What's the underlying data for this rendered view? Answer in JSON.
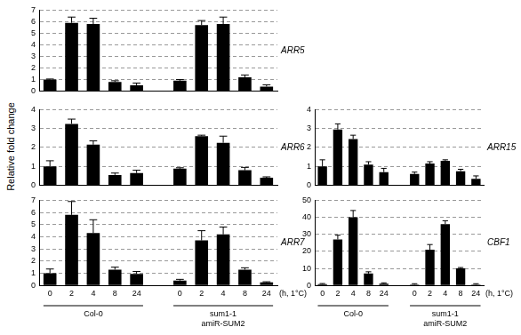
{
  "chart_data": [
    {
      "type": "bar",
      "title": "ARR5",
      "categories": [
        "0",
        "2",
        "4",
        "8",
        "24",
        null,
        "0",
        "2",
        "4",
        "8",
        "24"
      ],
      "values": [
        1.0,
        5.9,
        5.8,
        0.8,
        0.5,
        null,
        0.9,
        5.7,
        5.8,
        1.2,
        0.4
      ],
      "errors": [
        0.05,
        0.5,
        0.5,
        0.1,
        0.2,
        null,
        0.1,
        0.4,
        0.6,
        0.2,
        0.15
      ],
      "color": "#000000",
      "ylim": [
        0,
        7
      ],
      "yticks": [
        0,
        1,
        2,
        3,
        4,
        5,
        6,
        7
      ],
      "grid": true,
      "tick_labels": "y"
    },
    {
      "type": "bar",
      "title": "ARR6",
      "ylabel": "Relative fold change",
      "categories": [
        "0",
        "2",
        "4",
        "8",
        "24",
        null,
        "0",
        "2",
        "4",
        "8",
        "24"
      ],
      "values": [
        1.0,
        3.25,
        2.15,
        0.55,
        0.65,
        null,
        0.88,
        2.6,
        2.25,
        0.8,
        0.4
      ],
      "errors": [
        0.3,
        0.25,
        0.2,
        0.1,
        0.15,
        null,
        0.05,
        0.05,
        0.35,
        0.15,
        0.05
      ],
      "color": "#000000",
      "ylim": [
        0,
        4
      ],
      "yticks": [
        0,
        1,
        2,
        3,
        4
      ],
      "grid": true,
      "tick_labels": "y"
    },
    {
      "type": "bar",
      "title": "ARR7",
      "xlabel": "(h, 1°C)",
      "group_labels": [
        [
          "Col-0"
        ],
        [
          "sum1-1",
          "amiR-SUM2"
        ]
      ],
      "categories": [
        "0",
        "2",
        "4",
        "8",
        "24",
        null,
        "0",
        "2",
        "4",
        "8",
        "24"
      ],
      "values": [
        1.0,
        5.8,
        4.3,
        1.3,
        0.95,
        null,
        0.4,
        3.7,
        4.2,
        1.3,
        0.25
      ],
      "errors": [
        0.35,
        1.1,
        1.1,
        0.2,
        0.2,
        null,
        0.1,
        0.8,
        0.6,
        0.15,
        0.05
      ],
      "color": "#000000",
      "ylim": [
        0,
        7
      ],
      "yticks": [
        0,
        1,
        2,
        3,
        4,
        5,
        6,
        7
      ],
      "grid": true
    },
    {
      "type": "bar",
      "title": "ARR15",
      "categories": [
        "0",
        "2",
        "4",
        "8",
        "24",
        null,
        "0",
        "2",
        "4",
        "8",
        "24"
      ],
      "values": [
        1.0,
        2.95,
        2.45,
        1.1,
        0.7,
        null,
        0.6,
        1.15,
        1.3,
        0.75,
        0.35
      ],
      "errors": [
        0.35,
        0.3,
        0.2,
        0.15,
        0.2,
        null,
        0.1,
        0.1,
        0.05,
        0.1,
        0.15
      ],
      "color": "#000000",
      "ylim": [
        0,
        4
      ],
      "yticks": [
        0,
        1,
        2,
        3,
        4
      ],
      "grid": true,
      "tick_labels": "y"
    },
    {
      "type": "bar",
      "title": "CBF1",
      "xlabel": "(h, 1°C)",
      "group_labels": [
        [
          "Col-0"
        ],
        [
          "sum1-1",
          "amiR-SUM2"
        ]
      ],
      "categories": [
        "0",
        "2",
        "4",
        "8",
        "24",
        null,
        "0",
        "2",
        "4",
        "8",
        "24"
      ],
      "values": [
        0.8,
        27,
        40,
        7,
        1,
        null,
        0.5,
        21,
        36,
        10,
        0.5
      ],
      "errors": [
        0.3,
        2.5,
        4,
        1,
        0.5,
        null,
        0.5,
        3,
        2,
        0.5,
        0.5
      ],
      "color": "#000000",
      "ylim": [
        0,
        50
      ],
      "yticks": [
        0,
        10,
        20,
        30,
        40,
        50
      ],
      "grid": true
    }
  ]
}
